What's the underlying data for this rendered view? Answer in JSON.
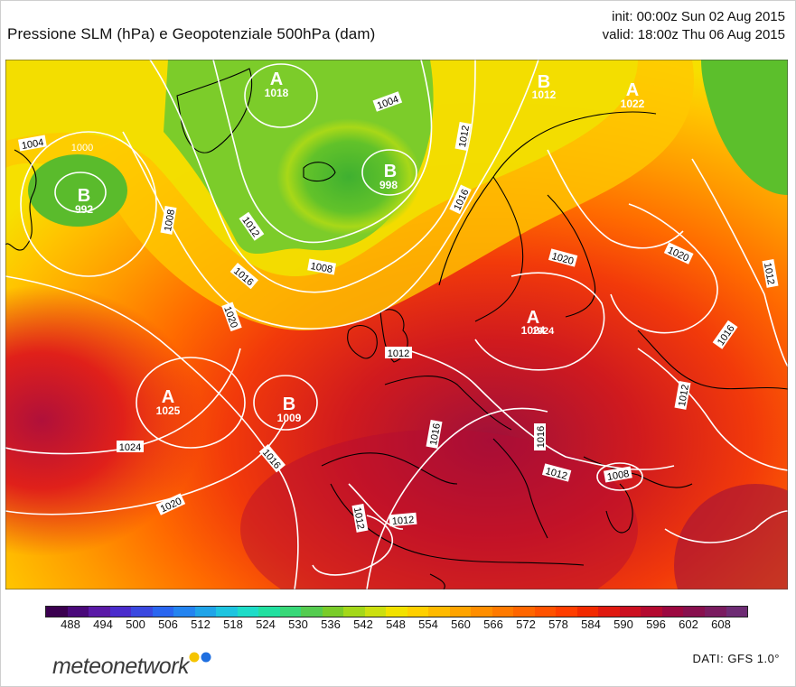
{
  "header": {
    "title": "Pressione SLM (hPa) e Geopotenziale 500hPa (dam)",
    "init": "init: 00:00z Sun 02 Aug 2015",
    "valid": "valid: 18:00z Thu 06 Aug 2015"
  },
  "pressure_centers": [
    {
      "letter": "A",
      "value": "1018"
    },
    {
      "letter": "B",
      "value": "1012"
    },
    {
      "letter": "A",
      "value": "1022"
    },
    {
      "letter": "B",
      "value": "992"
    },
    {
      "letter": "B",
      "value": "998"
    },
    {
      "letter": "A",
      "value": "1024"
    },
    {
      "letter": "A",
      "value": "1025"
    },
    {
      "letter": "B",
      "value": "1009"
    }
  ],
  "isobar_labels": [
    "1004",
    "1000",
    "1008",
    "1012",
    "1004",
    "1012",
    "1016",
    "1008",
    "1016",
    "1020",
    "1024",
    "1012",
    "1020",
    "1020",
    "1016",
    "1012",
    "1016",
    "1016",
    "1024",
    "1020",
    "1012",
    "1012",
    "1012",
    "1016",
    "1012",
    "1008"
  ],
  "colorbar": {
    "ticks": [
      "488",
      "494",
      "500",
      "506",
      "512",
      "518",
      "524",
      "530",
      "536",
      "542",
      "548",
      "554",
      "560",
      "566",
      "572",
      "578",
      "584",
      "590",
      "596",
      "602",
      "608"
    ],
    "colors": [
      "#3b0050",
      "#4a0a7a",
      "#5a1aa6",
      "#4a2ccc",
      "#3a48e0",
      "#2a66f0",
      "#2484f0",
      "#20a4e8",
      "#1ec4e0",
      "#1edcc8",
      "#22e0a0",
      "#38d878",
      "#55cc50",
      "#7acc2a",
      "#a4d81a",
      "#cce010",
      "#f2e200",
      "#ffd000",
      "#ffba00",
      "#ffa400",
      "#ff8e00",
      "#ff7a00",
      "#ff6600",
      "#ff5200",
      "#ff3e00",
      "#f22a00",
      "#e01a10",
      "#cc1020",
      "#b40a30",
      "#9c0840",
      "#88104e",
      "#7a1c60",
      "#6e2c74"
    ],
    "unit": "dam"
  },
  "brand": {
    "name": "meteonetwork",
    "dot_colors": [
      "#f5c400",
      "#1f6fe0"
    ]
  },
  "source": "DATI:  GFS  1.0°"
}
